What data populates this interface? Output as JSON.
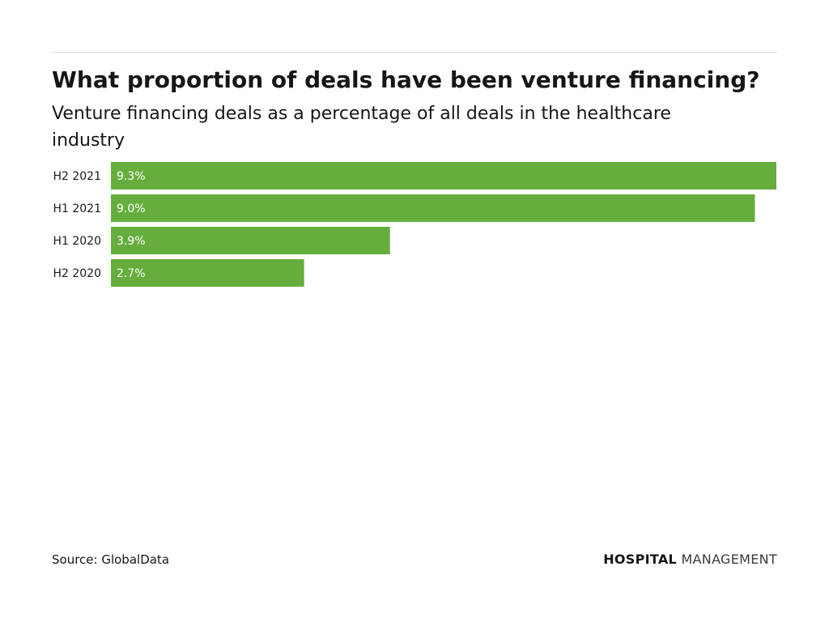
{
  "header": {
    "title": "What proportion of deals have been venture financing?",
    "subtitle": "Venture financing deals as a percentage of all deals in the healthcare industry"
  },
  "chart_data": {
    "type": "bar",
    "orientation": "horizontal",
    "categories": [
      "H2 2021",
      "H1 2021",
      "H1 2020",
      "H2 2020"
    ],
    "values": [
      9.3,
      9.0,
      3.9,
      2.7
    ],
    "value_labels": [
      "9.3%",
      "9.0%",
      "3.9%",
      "2.7%"
    ],
    "bar_color": "#66ad3d",
    "label_color": "#ffffff"
  },
  "footer": {
    "source": "Source: GlobalData",
    "brand_primary": "HOSPITAL",
    "brand_secondary": "MANAGEMENT"
  }
}
